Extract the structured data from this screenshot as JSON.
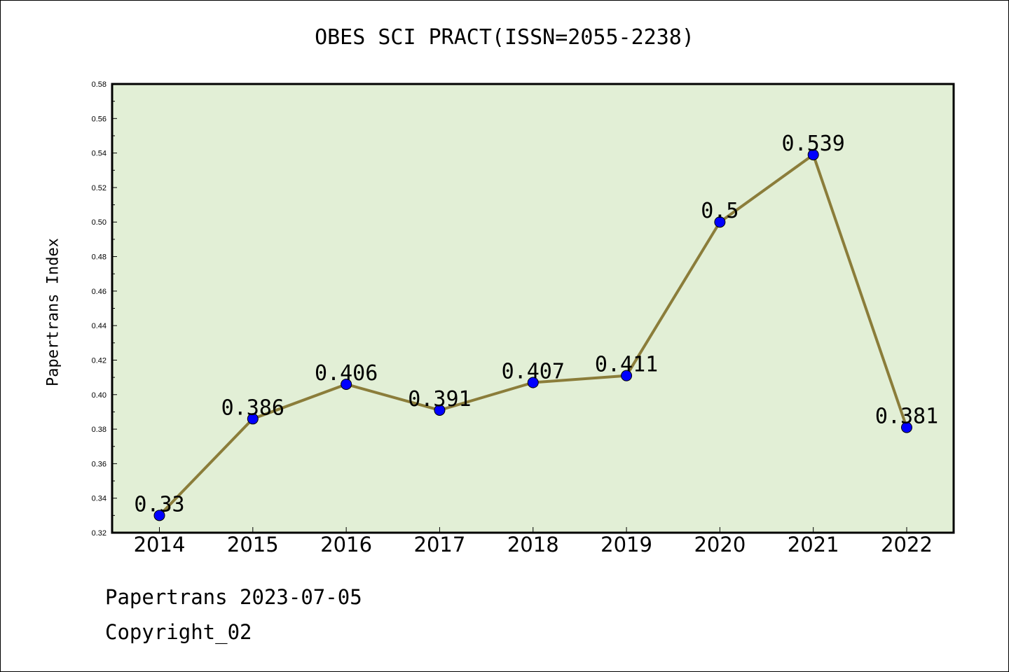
{
  "chart_data": {
    "type": "line",
    "title": "OBES SCI PRACT(ISSN=2055-2238)",
    "xlabel": "",
    "ylabel": "Papertrans Index",
    "categories": [
      "2014",
      "2015",
      "2016",
      "2017",
      "2018",
      "2019",
      "2020",
      "2021",
      "2022"
    ],
    "values": [
      0.33,
      0.386,
      0.406,
      0.391,
      0.407,
      0.411,
      0.5,
      0.539,
      0.381
    ],
    "data_labels": [
      "0.33",
      "0.386",
      "0.406",
      "0.391",
      "0.407",
      "0.411",
      "0.5",
      "0.539",
      "0.381"
    ],
    "ylim": [
      0.32,
      0.58
    ],
    "yticks": [
      "0.32",
      "0.34",
      "0.36",
      "0.38",
      "0.40",
      "0.42",
      "0.44",
      "0.46",
      "0.48",
      "0.50",
      "0.52",
      "0.54",
      "0.56",
      "0.58"
    ],
    "grid": false,
    "legend": "none",
    "colors": {
      "plot_background": "#e2efd6",
      "line": "#8b7d3a",
      "marker": "#0000ff"
    }
  },
  "footer": {
    "line1": "Papertrans 2023-07-05",
    "line2": "Copyright_02"
  }
}
